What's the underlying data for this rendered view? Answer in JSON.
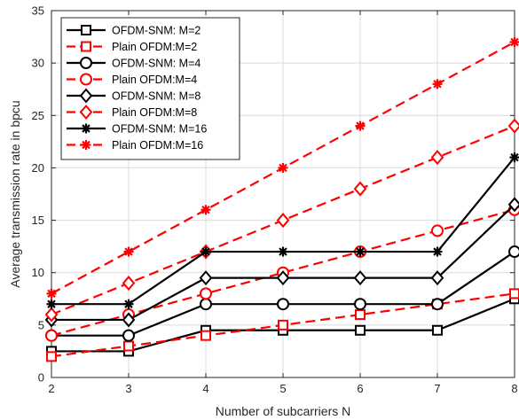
{
  "chart_data": {
    "type": "line",
    "title": "",
    "xlabel": "Number of subcarriers N",
    "ylabel": "Average transmission rate in bpcu",
    "xlim": [
      2,
      8
    ],
    "ylim": [
      0,
      35
    ],
    "xticks": [
      2,
      3,
      4,
      5,
      6,
      7,
      8
    ],
    "yticks": [
      0,
      5,
      10,
      15,
      20,
      25,
      30,
      35
    ],
    "grid": true,
    "legend_position": "top-left",
    "x": [
      2,
      3,
      4,
      5,
      6,
      7,
      8
    ],
    "series": [
      {
        "name": "OFDM-SNM: M=2",
        "color": "#000000",
        "dash": "solid",
        "marker": "square",
        "values": [
          2.5,
          2.5,
          4.5,
          4.5,
          4.5,
          4.5,
          7.5
        ]
      },
      {
        "name": "Plain OFDM:M=2",
        "color": "#ff0000",
        "dash": "dashed",
        "marker": "square",
        "values": [
          2,
          3,
          4,
          5,
          6,
          7,
          8
        ]
      },
      {
        "name": "OFDM-SNM: M=4",
        "color": "#000000",
        "dash": "solid",
        "marker": "circle",
        "values": [
          4,
          4,
          7,
          7,
          7,
          7,
          12
        ]
      },
      {
        "name": "Plain OFDM:M=4",
        "color": "#ff0000",
        "dash": "dashed",
        "marker": "circle",
        "values": [
          4,
          6,
          8,
          10,
          12,
          14,
          16
        ]
      },
      {
        "name": "OFDM-SNM: M=8",
        "color": "#000000",
        "dash": "solid",
        "marker": "diamond",
        "values": [
          5.5,
          5.5,
          9.5,
          9.5,
          9.5,
          9.5,
          16.5
        ]
      },
      {
        "name": "Plain OFDM:M=8",
        "color": "#ff0000",
        "dash": "dashed",
        "marker": "diamond",
        "values": [
          6,
          9,
          12,
          15,
          18,
          21,
          24
        ]
      },
      {
        "name": "OFDM-SNM: M=16",
        "color": "#000000",
        "dash": "solid",
        "marker": "asterisk",
        "values": [
          7,
          7,
          12,
          12,
          12,
          12,
          21
        ]
      },
      {
        "name": "Plain OFDM:M=16",
        "color": "#ff0000",
        "dash": "dashed",
        "marker": "asterisk",
        "values": [
          8,
          12,
          16,
          20,
          24,
          28,
          32
        ]
      }
    ]
  }
}
